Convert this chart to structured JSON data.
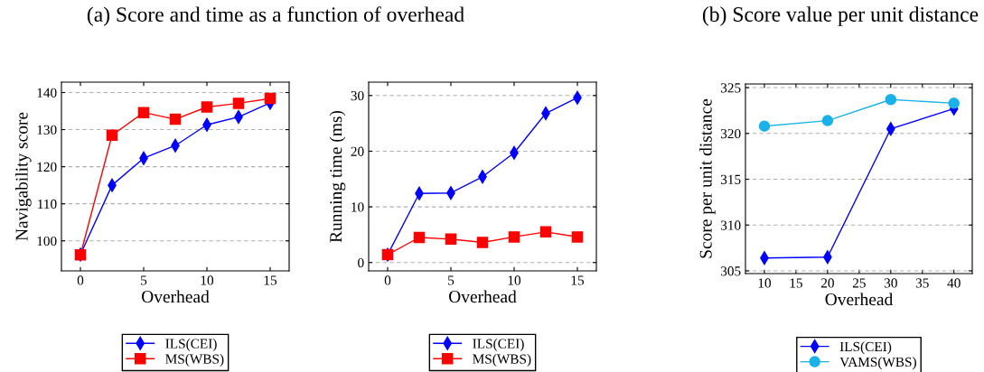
{
  "chart_data": [
    {
      "type": "line",
      "title": "(a) Score and time as a function of overhead",
      "xlabel": "Overhead",
      "ylabel": "Navigability score",
      "x": [
        0,
        2.5,
        5,
        7.5,
        10,
        12.5,
        15
      ],
      "series": [
        {
          "name": "ILS(CEI)",
          "color": "#0000ff",
          "marker": "diamond",
          "values": [
            96.3,
            115,
            122.3,
            125.7,
            131.3,
            133.4,
            137.2
          ]
        },
        {
          "name": "MS(WBS)",
          "color": "#ff0000",
          "marker": "square",
          "values": [
            96.2,
            128.5,
            134.6,
            132.8,
            136.1,
            137.1,
            138.4
          ]
        }
      ],
      "xlim": [
        -1.5,
        16.5
      ],
      "xticks": [
        0,
        5,
        10,
        15
      ],
      "ylim": [
        91.9,
        142.8
      ],
      "yticks": [
        100,
        110,
        120,
        130,
        140
      ],
      "grid": "y",
      "legend": "bottom"
    },
    {
      "type": "line",
      "xlabel": "Overhead",
      "ylabel": "Running time (ms)",
      "x": [
        0,
        2.5,
        5,
        7.5,
        10,
        12.5,
        15
      ],
      "series": [
        {
          "name": "ILS(CEI)",
          "color": "#0000ff",
          "marker": "diamond",
          "values": [
            1.4,
            12.4,
            12.5,
            15.4,
            19.7,
            26.8,
            29.6
          ]
        },
        {
          "name": "MS(WBS)",
          "color": "#ff0000",
          "marker": "square",
          "values": [
            1.4,
            4.5,
            4.2,
            3.6,
            4.6,
            5.5,
            4.6
          ]
        }
      ],
      "xlim": [
        -1.5,
        16.5
      ],
      "xticks": [
        0,
        5,
        10,
        15
      ],
      "ylim": [
        -1.5,
        32.4
      ],
      "yticks": [
        0,
        10,
        20,
        30
      ],
      "grid": "y",
      "legend": "bottom"
    },
    {
      "type": "line",
      "title": "(b) Score value per unit distance",
      "xlabel": "Overhead",
      "ylabel": "Score per unit distance",
      "x": [
        10,
        20,
        30,
        40
      ],
      "series": [
        {
          "name": "ILS(CEI)",
          "color": "#0000ff",
          "marker": "diamond",
          "values": [
            306.4,
            306.5,
            320.5,
            322.7
          ]
        },
        {
          "name": "VAMS(WBS)",
          "color": "#1ab2e8",
          "marker": "circle",
          "values": [
            320.8,
            321.4,
            323.7,
            323.3
          ]
        }
      ],
      "xlim": [
        7,
        42.9
      ],
      "xticks": [
        10,
        15,
        20,
        25,
        30,
        35,
        40
      ],
      "ylim": [
        304.7,
        325.4
      ],
      "yticks": [
        305,
        310,
        315,
        320,
        325
      ],
      "grid": "y",
      "legend": "bottom"
    }
  ]
}
